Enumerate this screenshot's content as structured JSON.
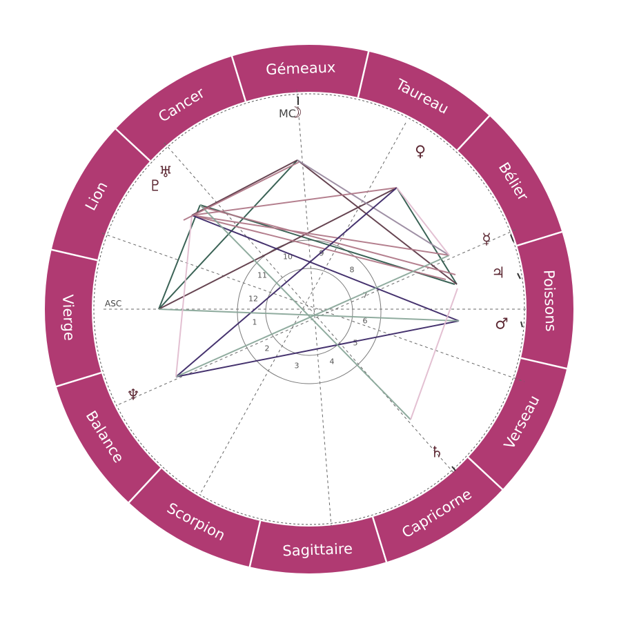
{
  "colors": {
    "ring": "#b03a72",
    "divider": "#ffffff",
    "sign_text": "#ffffff",
    "glyph": "#5e2a35",
    "dash": "#666666",
    "house_ring": "#7a7a7a",
    "aspect_lines": [
      "#2f5a4c",
      "#5e3a48",
      "#9a8aa0",
      "#b07888",
      "#3b2766",
      "#8aa89a",
      "#e2bdd0"
    ]
  },
  "signs": [
    {
      "name": "Cancer"
    },
    {
      "name": "Gémeaux"
    },
    {
      "name": "Taureau"
    },
    {
      "name": "Bélier"
    },
    {
      "name": "Poissons"
    },
    {
      "name": "Verseau"
    },
    {
      "name": "Capricorne"
    },
    {
      "name": "Sagittaire"
    },
    {
      "name": "Scorpion"
    },
    {
      "name": "Balance"
    },
    {
      "name": "Vierge"
    },
    {
      "name": "Lion"
    }
  ],
  "labels": {
    "asc": "ASC",
    "mc": "MC"
  },
  "houses": [
    "1",
    "2",
    "3",
    "4",
    "5",
    "6",
    "7",
    "8",
    "9",
    "10",
    "11",
    "12"
  ],
  "planets": [
    {
      "name": "moon",
      "glyph": "☽"
    },
    {
      "name": "venus",
      "glyph": "♀"
    },
    {
      "name": "mercury",
      "glyph": "☿"
    },
    {
      "name": "jupiter",
      "glyph": "♃"
    },
    {
      "name": "mars",
      "glyph": "♂"
    },
    {
      "name": "saturn",
      "glyph": "♄"
    },
    {
      "name": "neptune",
      "glyph": "♆"
    },
    {
      "name": "pluto",
      "glyph": "♇"
    },
    {
      "name": "uranus",
      "glyph": "♅"
    }
  ]
}
